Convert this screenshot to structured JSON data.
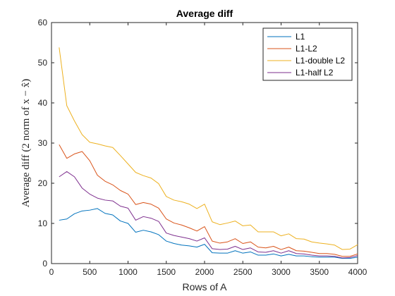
{
  "chart_data": {
    "type": "line",
    "title": "Average diff",
    "xlabel": "Rows of A",
    "ylabel": "Average diff (2 norm of x − x̂)",
    "xlim": [
      0,
      4000
    ],
    "ylim": [
      0,
      60
    ],
    "xticks": [
      0,
      500,
      1000,
      1500,
      2000,
      2500,
      3000,
      3500,
      4000
    ],
    "yticks": [
      0,
      10,
      20,
      30,
      40,
      50,
      60
    ],
    "grid": false,
    "legend_position": "top-right",
    "x": [
      100,
      200,
      300,
      400,
      500,
      600,
      700,
      800,
      900,
      1000,
      1100,
      1200,
      1300,
      1400,
      1500,
      1600,
      1700,
      1800,
      1900,
      2000,
      2100,
      2200,
      2300,
      2400,
      2500,
      2600,
      2700,
      2800,
      2900,
      3000,
      3100,
      3200,
      3300,
      3400,
      3500,
      3600,
      3700,
      3800,
      3900,
      4000
    ],
    "series": [
      {
        "name": "L1",
        "color": "#0072BD",
        "values": [
          10.8,
          11.1,
          12.4,
          13.1,
          13.3,
          13.7,
          12.5,
          12.1,
          10.6,
          10.0,
          7.8,
          8.3,
          7.9,
          7.2,
          5.6,
          5.0,
          4.6,
          4.4,
          4.1,
          4.8,
          2.7,
          2.6,
          2.6,
          3.2,
          2.6,
          2.9,
          2.1,
          2.1,
          2.4,
          1.9,
          2.3,
          1.9,
          1.9,
          1.7,
          1.6,
          1.6,
          1.6,
          1.3,
          1.3,
          1.6
        ]
      },
      {
        "name": "L1-L2",
        "color": "#D95319",
        "values": [
          29.6,
          26.2,
          27.3,
          27.9,
          25.6,
          22.0,
          20.5,
          19.6,
          18.2,
          17.3,
          14.7,
          15.2,
          14.8,
          13.8,
          11.1,
          10.1,
          9.6,
          8.9,
          8.1,
          9.2,
          5.6,
          5.1,
          5.4,
          6.2,
          5.0,
          5.4,
          4.1,
          3.9,
          4.3,
          3.5,
          4.1,
          3.2,
          3.1,
          2.8,
          2.5,
          2.5,
          2.3,
          1.8,
          1.8,
          2.4
        ]
      },
      {
        "name": "L1-double L2",
        "color": "#EDB120",
        "values": [
          53.8,
          39.3,
          35.5,
          32.1,
          30.2,
          29.8,
          29.3,
          28.9,
          26.9,
          24.8,
          22.7,
          21.9,
          21.3,
          19.9,
          16.7,
          15.8,
          15.4,
          14.8,
          13.7,
          14.8,
          10.4,
          9.7,
          10.1,
          10.6,
          9.4,
          9.6,
          7.9,
          7.9,
          7.9,
          6.9,
          7.4,
          6.2,
          6.1,
          5.4,
          5.1,
          4.9,
          4.6,
          3.5,
          3.6,
          4.7
        ]
      },
      {
        "name": "L1-half L2",
        "color": "#7E2F8E",
        "values": [
          21.6,
          22.9,
          21.6,
          18.8,
          17.3,
          16.3,
          15.8,
          15.6,
          14.3,
          13.8,
          10.8,
          11.7,
          11.3,
          10.5,
          7.6,
          7.0,
          6.6,
          6.2,
          5.6,
          6.4,
          3.7,
          3.5,
          3.6,
          4.3,
          3.5,
          3.9,
          2.9,
          2.8,
          3.2,
          2.6,
          3.2,
          2.5,
          2.4,
          2.1,
          1.9,
          1.9,
          1.8,
          1.4,
          1.5,
          2.0
        ]
      }
    ]
  }
}
